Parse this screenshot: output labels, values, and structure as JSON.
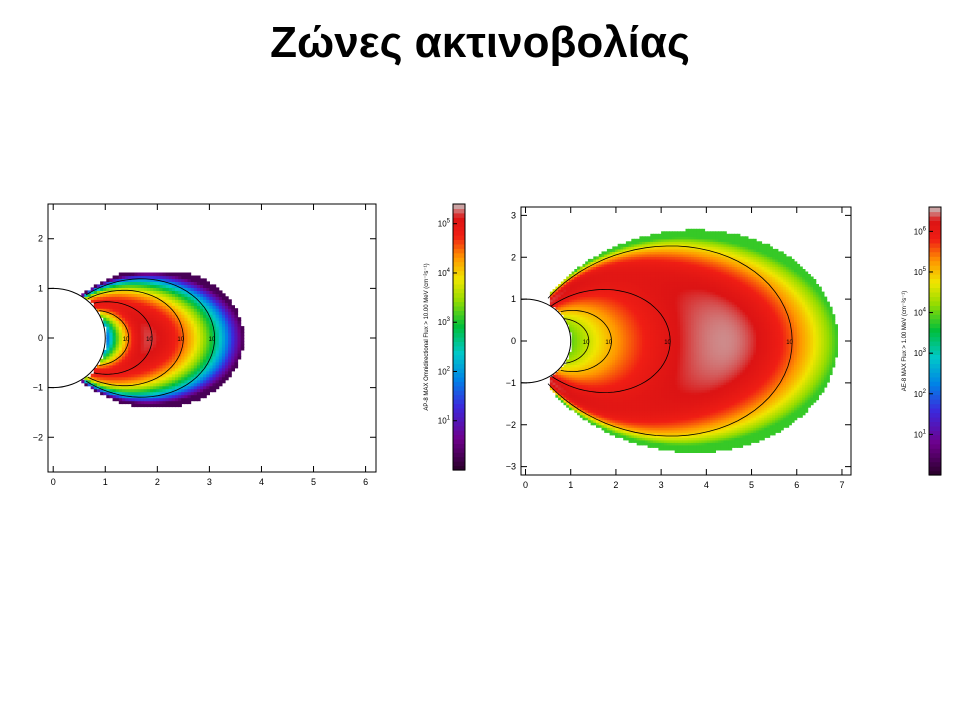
{
  "slide": {
    "title": "Ζώνες ακτινοβολίας"
  },
  "chart_data": [
    {
      "type": "heatmap",
      "title": "",
      "xlabel": "",
      "ylabel": "",
      "xlim": [
        -0.1,
        6.2
      ],
      "ylim": [
        -2.7,
        2.7
      ],
      "xticks": [
        0,
        1,
        2,
        3,
        4,
        5,
        6
      ],
      "yticks": [
        -2,
        -1,
        0,
        1,
        2
      ],
      "earth_radius": 1,
      "contour_labels": [
        "10",
        "10",
        "10",
        "10"
      ],
      "colorbar": {
        "label": "AP-8 MAX Omnidirectional Flux > 10.00 MeV (cm⁻²s⁻¹)",
        "ticks": [
          {
            "base": "10",
            "exp": "1",
            "value": 1
          },
          {
            "base": "10",
            "exp": "2",
            "value": 2
          },
          {
            "base": "10",
            "exp": "3",
            "value": 3
          },
          {
            "base": "10",
            "exp": "4",
            "value": 4
          },
          {
            "base": "10",
            "exp": "5",
            "value": 5
          }
        ],
        "range": [
          0,
          5.4
        ]
      },
      "belt": {
        "outer_edge": 3.65,
        "peak_L": 1.8,
        "peak_level": 5.2,
        "min_level": 0.3,
        "lat_extent": 1.35
      }
    },
    {
      "type": "heatmap",
      "title": "",
      "xlabel": "",
      "ylabel": "",
      "xlim": [
        -0.1,
        7.2
      ],
      "ylim": [
        -3.2,
        3.2
      ],
      "xticks": [
        0,
        1,
        2,
        3,
        4,
        5,
        6,
        7
      ],
      "yticks": [
        -3,
        -2,
        -1,
        0,
        1,
        2,
        3
      ],
      "earth_radius": 1,
      "contour_labels": [
        "10",
        "10",
        "10",
        "10",
        "10",
        "10"
      ],
      "colorbar": {
        "label": "AE-8 MAX Flux > 1.00 MeV (cm⁻²s⁻¹)",
        "ticks": [
          {
            "base": "10",
            "exp": "1",
            "value": 1
          },
          {
            "base": "10",
            "exp": "2",
            "value": 2
          },
          {
            "base": "10",
            "exp": "3",
            "value": 3
          },
          {
            "base": "10",
            "exp": "4",
            "value": 4
          },
          {
            "base": "10",
            "exp": "5",
            "value": 5
          },
          {
            "base": "10",
            "exp": "6",
            "value": 6
          }
        ],
        "range": [
          0,
          6.6
        ]
      },
      "belt": {
        "outer_edge": 6.9,
        "peak_L": 4.4,
        "peak_level": 6.5,
        "min_level": 3.8,
        "lat_extent": 2.9
      }
    }
  ]
}
